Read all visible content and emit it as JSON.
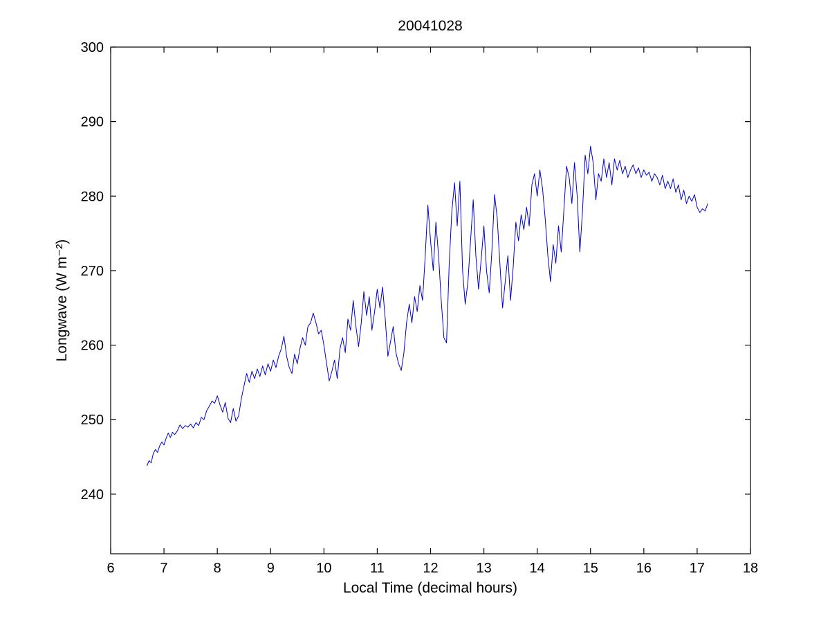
{
  "page": {
    "background_color": "#ffffff",
    "axis_color": "#000000",
    "text_color": "#000000"
  },
  "chart_data": {
    "type": "line",
    "title": "20041028",
    "xlabel": "Local Time (decimal hours)",
    "ylabel": "Longwave (W m⁻²)",
    "xlim": [
      6,
      18
    ],
    "ylim": [
      232,
      300
    ],
    "xticks": [
      6,
      7,
      8,
      9,
      10,
      11,
      12,
      13,
      14,
      15,
      16,
      17,
      18
    ],
    "yticks": [
      240,
      250,
      260,
      270,
      280,
      290,
      300
    ],
    "grid": false,
    "legend": "none",
    "line_color": "#0000cc",
    "series": [
      {
        "name": "longwave",
        "points": [
          [
            6.68,
            243.8
          ],
          [
            6.72,
            244.5
          ],
          [
            6.76,
            244.2
          ],
          [
            6.8,
            245.5
          ],
          [
            6.84,
            246.0
          ],
          [
            6.88,
            245.6
          ],
          [
            6.92,
            246.5
          ],
          [
            6.96,
            247.0
          ],
          [
            7.0,
            246.6
          ],
          [
            7.04,
            247.5
          ],
          [
            7.08,
            248.2
          ],
          [
            7.12,
            247.6
          ],
          [
            7.16,
            248.3
          ],
          [
            7.2,
            248.0
          ],
          [
            7.25,
            248.5
          ],
          [
            7.3,
            249.3
          ],
          [
            7.35,
            248.8
          ],
          [
            7.4,
            249.2
          ],
          [
            7.45,
            249.0
          ],
          [
            7.5,
            249.4
          ],
          [
            7.55,
            248.9
          ],
          [
            7.6,
            249.6
          ],
          [
            7.65,
            249.2
          ],
          [
            7.7,
            250.3
          ],
          [
            7.75,
            250.0
          ],
          [
            7.8,
            251.2
          ],
          [
            7.85,
            251.8
          ],
          [
            7.9,
            252.5
          ],
          [
            7.95,
            252.2
          ],
          [
            8.0,
            253.2
          ],
          [
            8.05,
            252.0
          ],
          [
            8.1,
            251.0
          ],
          [
            8.15,
            252.3
          ],
          [
            8.2,
            250.2
          ],
          [
            8.25,
            249.6
          ],
          [
            8.3,
            251.5
          ],
          [
            8.35,
            249.8
          ],
          [
            8.4,
            250.5
          ],
          [
            8.45,
            252.8
          ],
          [
            8.5,
            254.5
          ],
          [
            8.55,
            256.2
          ],
          [
            8.6,
            255.0
          ],
          [
            8.65,
            256.5
          ],
          [
            8.7,
            255.5
          ],
          [
            8.75,
            256.8
          ],
          [
            8.8,
            255.8
          ],
          [
            8.85,
            257.2
          ],
          [
            8.9,
            256.0
          ],
          [
            8.95,
            257.5
          ],
          [
            9.0,
            256.5
          ],
          [
            9.05,
            258.0
          ],
          [
            9.1,
            257.0
          ],
          [
            9.15,
            258.5
          ],
          [
            9.2,
            259.5
          ],
          [
            9.25,
            261.2
          ],
          [
            9.3,
            258.5
          ],
          [
            9.35,
            257.0
          ],
          [
            9.4,
            256.2
          ],
          [
            9.45,
            258.8
          ],
          [
            9.5,
            257.5
          ],
          [
            9.55,
            259.5
          ],
          [
            9.6,
            261.0
          ],
          [
            9.65,
            260.0
          ],
          [
            9.7,
            262.5
          ],
          [
            9.75,
            263.0
          ],
          [
            9.8,
            264.3
          ],
          [
            9.85,
            263.0
          ],
          [
            9.9,
            261.5
          ],
          [
            9.95,
            262.0
          ],
          [
            10.0,
            260.0
          ],
          [
            10.05,
            257.5
          ],
          [
            10.1,
            255.2
          ],
          [
            10.15,
            256.5
          ],
          [
            10.2,
            258.0
          ],
          [
            10.25,
            255.5
          ],
          [
            10.3,
            259.5
          ],
          [
            10.35,
            261.0
          ],
          [
            10.4,
            259.0
          ],
          [
            10.45,
            263.5
          ],
          [
            10.5,
            262.0
          ],
          [
            10.55,
            266.0
          ],
          [
            10.6,
            262.5
          ],
          [
            10.65,
            259.8
          ],
          [
            10.7,
            263.0
          ],
          [
            10.75,
            267.2
          ],
          [
            10.8,
            264.0
          ],
          [
            10.85,
            266.5
          ],
          [
            10.9,
            262.0
          ],
          [
            10.95,
            264.5
          ],
          [
            11.0,
            267.5
          ],
          [
            11.05,
            265.0
          ],
          [
            11.1,
            267.8
          ],
          [
            11.15,
            263.5
          ],
          [
            11.2,
            258.5
          ],
          [
            11.25,
            260.5
          ],
          [
            11.3,
            262.5
          ],
          [
            11.35,
            259.0
          ],
          [
            11.4,
            257.5
          ],
          [
            11.45,
            256.6
          ],
          [
            11.5,
            259.0
          ],
          [
            11.55,
            263.0
          ],
          [
            11.6,
            265.5
          ],
          [
            11.65,
            263.0
          ],
          [
            11.7,
            266.5
          ],
          [
            11.75,
            264.5
          ],
          [
            11.8,
            268.0
          ],
          [
            11.85,
            266.0
          ],
          [
            11.9,
            272.0
          ],
          [
            11.95,
            278.8
          ],
          [
            12.0,
            274.0
          ],
          [
            12.05,
            270.0
          ],
          [
            12.1,
            276.5
          ],
          [
            12.15,
            272.0
          ],
          [
            12.2,
            266.0
          ],
          [
            12.25,
            261.0
          ],
          [
            12.3,
            260.3
          ],
          [
            12.35,
            271.0
          ],
          [
            12.4,
            278.0
          ],
          [
            12.45,
            281.8
          ],
          [
            12.5,
            276.0
          ],
          [
            12.55,
            282.0
          ],
          [
            12.6,
            270.0
          ],
          [
            12.65,
            265.5
          ],
          [
            12.7,
            268.5
          ],
          [
            12.75,
            274.0
          ],
          [
            12.8,
            279.5
          ],
          [
            12.85,
            272.0
          ],
          [
            12.9,
            267.5
          ],
          [
            12.95,
            271.5
          ],
          [
            13.0,
            276.0
          ],
          [
            13.05,
            270.0
          ],
          [
            13.1,
            267.0
          ],
          [
            13.15,
            272.5
          ],
          [
            13.2,
            280.2
          ],
          [
            13.25,
            277.0
          ],
          [
            13.3,
            271.0
          ],
          [
            13.35,
            265.0
          ],
          [
            13.4,
            268.5
          ],
          [
            13.45,
            272.0
          ],
          [
            13.5,
            266.0
          ],
          [
            13.55,
            270.5
          ],
          [
            13.6,
            276.5
          ],
          [
            13.65,
            274.0
          ],
          [
            13.7,
            277.5
          ],
          [
            13.75,
            275.5
          ],
          [
            13.8,
            278.5
          ],
          [
            13.85,
            276.0
          ],
          [
            13.9,
            281.5
          ],
          [
            13.95,
            283.0
          ],
          [
            14.0,
            280.0
          ],
          [
            14.05,
            283.5
          ],
          [
            14.1,
            281.0
          ],
          [
            14.15,
            277.0
          ],
          [
            14.2,
            272.0
          ],
          [
            14.25,
            268.5
          ],
          [
            14.3,
            273.5
          ],
          [
            14.35,
            271.0
          ],
          [
            14.4,
            276.0
          ],
          [
            14.45,
            272.5
          ],
          [
            14.5,
            278.0
          ],
          [
            14.55,
            284.0
          ],
          [
            14.6,
            282.5
          ],
          [
            14.65,
            279.0
          ],
          [
            14.7,
            284.5
          ],
          [
            14.75,
            280.0
          ],
          [
            14.8,
            272.5
          ],
          [
            14.85,
            278.0
          ],
          [
            14.9,
            285.5
          ],
          [
            14.95,
            283.0
          ],
          [
            15.0,
            286.7
          ],
          [
            15.05,
            284.5
          ],
          [
            15.1,
            279.5
          ],
          [
            15.15,
            283.0
          ],
          [
            15.2,
            282.0
          ],
          [
            15.25,
            285.0
          ],
          [
            15.3,
            282.5
          ],
          [
            15.35,
            284.5
          ],
          [
            15.4,
            281.5
          ],
          [
            15.45,
            285.0
          ],
          [
            15.5,
            283.5
          ],
          [
            15.55,
            284.8
          ],
          [
            15.6,
            283.0
          ],
          [
            15.65,
            284.0
          ],
          [
            15.7,
            282.5
          ],
          [
            15.75,
            283.5
          ],
          [
            15.8,
            284.2
          ],
          [
            15.85,
            283.0
          ],
          [
            15.9,
            283.8
          ],
          [
            15.95,
            282.5
          ],
          [
            16.0,
            283.5
          ],
          [
            16.05,
            282.8
          ],
          [
            16.1,
            283.2
          ],
          [
            16.15,
            282.0
          ],
          [
            16.2,
            283.0
          ],
          [
            16.25,
            282.5
          ],
          [
            16.3,
            281.5
          ],
          [
            16.35,
            282.8
          ],
          [
            16.4,
            281.0
          ],
          [
            16.45,
            282.0
          ],
          [
            16.5,
            281.0
          ],
          [
            16.55,
            282.3
          ],
          [
            16.6,
            280.5
          ],
          [
            16.65,
            281.5
          ],
          [
            16.7,
            279.5
          ],
          [
            16.75,
            280.8
          ],
          [
            16.8,
            279.0
          ],
          [
            16.85,
            280.0
          ],
          [
            16.9,
            279.3
          ],
          [
            16.95,
            280.2
          ],
          [
            17.0,
            278.5
          ],
          [
            17.05,
            277.8
          ],
          [
            17.1,
            278.3
          ],
          [
            17.15,
            278.0
          ],
          [
            17.2,
            279.0
          ]
        ]
      }
    ]
  }
}
